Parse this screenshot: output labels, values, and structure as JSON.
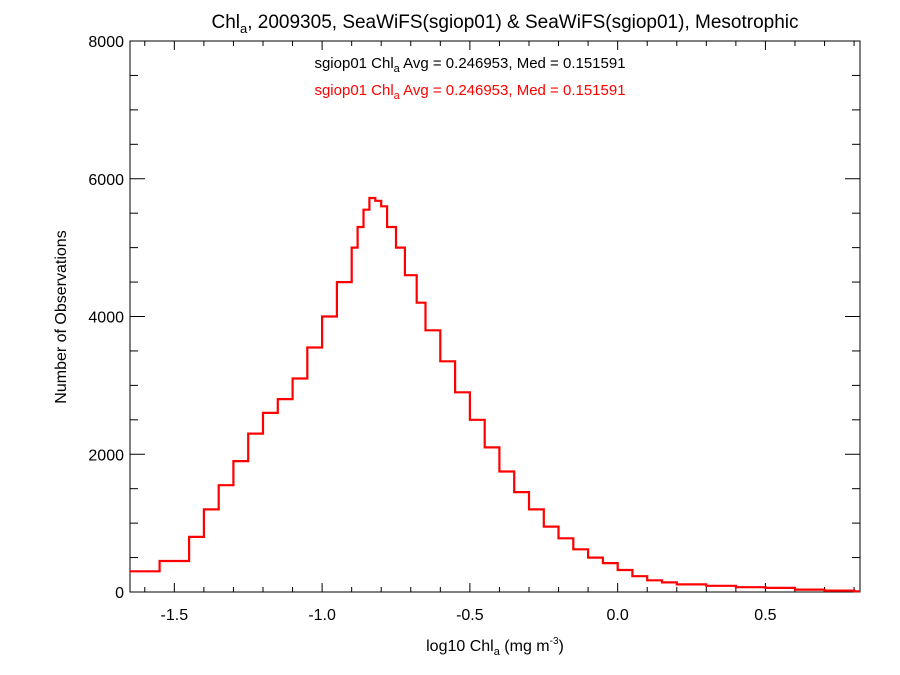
{
  "chart_data": {
    "type": "histogram",
    "title": {
      "pre": "Chl",
      "sub": "a",
      "post": ", 2009305, SeaWiFS(sgiop01) & SeaWiFS(sgiop01), Mesotrophic"
    },
    "xlabel": {
      "pre": "log10 Chl",
      "sub": "a",
      "mid": " (mg m",
      "sup": "-3",
      "post": ")"
    },
    "ylabel": "Number of Observations",
    "xlim": [
      -1.65,
      0.82
    ],
    "ylim": [
      0,
      8000
    ],
    "xticks": [
      -1.5,
      -1.0,
      -0.5,
      0.0,
      0.5
    ],
    "xtick_labels": [
      "-1.5",
      "-1.0",
      "-0.5",
      "0.0",
      "0.5"
    ],
    "yticks": [
      0,
      2000,
      4000,
      6000,
      8000
    ],
    "ytick_labels": [
      "0",
      "2000",
      "4000",
      "6000",
      "8000"
    ],
    "annotations": [
      {
        "pre": "sgiop01 Chl",
        "sub": "a",
        "post": " Avg = 0.246953, Med = 0.151591",
        "color": "#000000"
      },
      {
        "pre": "sgiop01 Chl",
        "sub": "a",
        "post": " Avg = 0.246953, Med = 0.151591",
        "color": "#ff0000"
      }
    ],
    "series": [
      {
        "color": "#ff0000",
        "points": [
          [
            -1.65,
            300
          ],
          [
            -1.55,
            450
          ],
          [
            -1.45,
            800
          ],
          [
            -1.4,
            1200
          ],
          [
            -1.35,
            1550
          ],
          [
            -1.3,
            1900
          ],
          [
            -1.25,
            2300
          ],
          [
            -1.2,
            2600
          ],
          [
            -1.15,
            2800
          ],
          [
            -1.1,
            3100
          ],
          [
            -1.05,
            3550
          ],
          [
            -1.0,
            4000
          ],
          [
            -0.95,
            4500
          ],
          [
            -0.9,
            5000
          ],
          [
            -0.88,
            5300
          ],
          [
            -0.86,
            5550
          ],
          [
            -0.84,
            5720
          ],
          [
            -0.82,
            5680
          ],
          [
            -0.8,
            5600
          ],
          [
            -0.78,
            5300
          ],
          [
            -0.75,
            5000
          ],
          [
            -0.72,
            4600
          ],
          [
            -0.68,
            4200
          ],
          [
            -0.65,
            3800
          ],
          [
            -0.6,
            3350
          ],
          [
            -0.55,
            2900
          ],
          [
            -0.5,
            2500
          ],
          [
            -0.45,
            2100
          ],
          [
            -0.4,
            1750
          ],
          [
            -0.35,
            1450
          ],
          [
            -0.3,
            1200
          ],
          [
            -0.25,
            950
          ],
          [
            -0.2,
            780
          ],
          [
            -0.15,
            620
          ],
          [
            -0.1,
            500
          ],
          [
            -0.05,
            420
          ],
          [
            0.0,
            320
          ],
          [
            0.05,
            230
          ],
          [
            0.1,
            170
          ],
          [
            0.15,
            140
          ],
          [
            0.2,
            110
          ],
          [
            0.3,
            90
          ],
          [
            0.4,
            70
          ],
          [
            0.5,
            60
          ],
          [
            0.6,
            35
          ],
          [
            0.7,
            20
          ],
          [
            0.8,
            10
          ]
        ]
      }
    ],
    "grid": false,
    "legend": "none"
  }
}
